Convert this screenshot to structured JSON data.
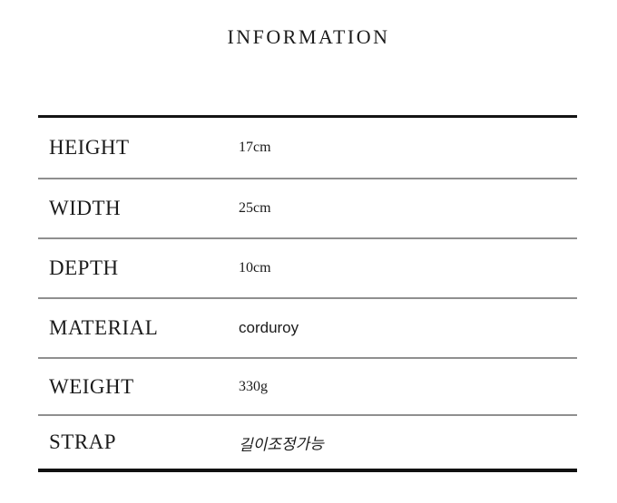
{
  "page": {
    "title": "INFORMATION"
  },
  "colors": {
    "background": "#ffffff",
    "text": "#1b1b1b",
    "border_heavy": "#141414",
    "separator": "#8f8f8f"
  },
  "table": {
    "rows": [
      {
        "label": "HEIGHT",
        "value": "17cm"
      },
      {
        "label": "WIDTH",
        "value": "25cm"
      },
      {
        "label": "DEPTH",
        "value": "10cm"
      },
      {
        "label": "MATERIAL",
        "value": "corduroy"
      },
      {
        "label": "WEIGHT",
        "value": "330g"
      },
      {
        "label": "STRAP",
        "value": "길이조정가능"
      }
    ]
  }
}
